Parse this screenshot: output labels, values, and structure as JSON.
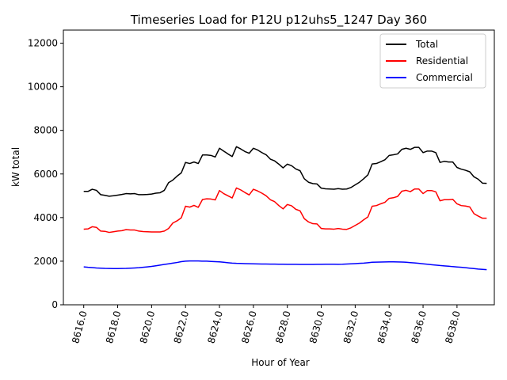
{
  "chart_data": {
    "type": "line",
    "title": "Timeseries Load for P12U p12uhs5_1247  Day 360",
    "xlabel": "Hour of Year",
    "ylabel": "kW total",
    "xlim": [
      8614.8,
      8640.2
    ],
    "ylim": [
      0,
      12600
    ],
    "xticks": [
      8616,
      8618,
      8620,
      8622,
      8624,
      8626,
      8628,
      8630,
      8632,
      8634,
      8636,
      8638
    ],
    "xtick_labels": [
      "8616.0",
      "8618.0",
      "8620.0",
      "8622.0",
      "8624.0",
      "8626.0",
      "8628.0",
      "8630.0",
      "8632.0",
      "8634.0",
      "8636.0",
      "8638.0"
    ],
    "yticks": [
      0,
      2000,
      4000,
      6000,
      8000,
      10000,
      12000
    ],
    "ytick_labels": [
      "0",
      "2000",
      "4000",
      "6000",
      "8000",
      "10000",
      "12000"
    ],
    "x_start": 8616,
    "x_step": 0.25,
    "legend_position": "upper-right",
    "series": [
      {
        "name": "Total",
        "color": "#000000",
        "values": [
          5200,
          5200,
          5300,
          5250,
          5050,
          5020,
          4980,
          5000,
          5030,
          5060,
          5100,
          5090,
          5100,
          5050,
          5050,
          5060,
          5080,
          5120,
          5140,
          5250,
          5600,
          5720,
          5900,
          6050,
          6530,
          6480,
          6550,
          6480,
          6870,
          6870,
          6850,
          6780,
          7180,
          7050,
          6920,
          6800,
          7250,
          7150,
          7030,
          6950,
          7180,
          7100,
          6980,
          6880,
          6680,
          6600,
          6450,
          6280,
          6450,
          6380,
          6230,
          6150,
          5780,
          5620,
          5560,
          5540,
          5350,
          5320,
          5310,
          5300,
          5330,
          5300,
          5310,
          5380,
          5500,
          5620,
          5780,
          5960,
          6460,
          6480,
          6560,
          6650,
          6850,
          6880,
          6920,
          7130,
          7180,
          7130,
          7220,
          7220,
          6980,
          7050,
          7050,
          6980,
          6530,
          6580,
          6550,
          6550,
          6300,
          6220,
          6170,
          6100,
          5870,
          5760,
          5580,
          5570
        ]
      },
      {
        "name": "Residential",
        "color": "#ff0000",
        "values": [
          3470,
          3480,
          3580,
          3550,
          3380,
          3370,
          3320,
          3350,
          3380,
          3400,
          3450,
          3430,
          3430,
          3380,
          3360,
          3350,
          3340,
          3340,
          3340,
          3380,
          3500,
          3750,
          3850,
          3990,
          4520,
          4480,
          4560,
          4470,
          4830,
          4860,
          4850,
          4810,
          5240,
          5100,
          5000,
          4900,
          5360,
          5270,
          5150,
          5040,
          5300,
          5220,
          5120,
          5000,
          4820,
          4730,
          4550,
          4400,
          4600,
          4540,
          4380,
          4310,
          3950,
          3800,
          3720,
          3710,
          3500,
          3480,
          3480,
          3470,
          3500,
          3470,
          3460,
          3530,
          3640,
          3750,
          3900,
          4030,
          4520,
          4550,
          4630,
          4700,
          4880,
          4910,
          4970,
          5210,
          5250,
          5190,
          5310,
          5310,
          5100,
          5240,
          5240,
          5180,
          4770,
          4820,
          4820,
          4840,
          4630,
          4550,
          4530,
          4490,
          4180,
          4070,
          3970,
          3970
        ]
      },
      {
        "name": "Commercial",
        "color": "#0000ff",
        "values": [
          1740,
          1720,
          1705,
          1690,
          1680,
          1670,
          1665,
          1660,
          1660,
          1665,
          1670,
          1680,
          1690,
          1700,
          1720,
          1740,
          1760,
          1790,
          1820,
          1850,
          1880,
          1910,
          1940,
          1980,
          2000,
          2010,
          2010,
          2010,
          2000,
          2000,
          1990,
          1980,
          1970,
          1950,
          1930,
          1910,
          1900,
          1895,
          1890,
          1885,
          1880,
          1875,
          1870,
          1868,
          1866,
          1864,
          1862,
          1860,
          1858,
          1856,
          1855,
          1854,
          1852,
          1850,
          1852,
          1855,
          1858,
          1860,
          1860,
          1860,
          1858,
          1860,
          1870,
          1880,
          1890,
          1900,
          1910,
          1930,
          1950,
          1955,
          1960,
          1965,
          1970,
          1970,
          1965,
          1960,
          1950,
          1935,
          1920,
          1900,
          1880,
          1860,
          1840,
          1820,
          1800,
          1785,
          1770,
          1750,
          1735,
          1720,
          1700,
          1680,
          1660,
          1640,
          1625,
          1610
        ]
      }
    ]
  }
}
